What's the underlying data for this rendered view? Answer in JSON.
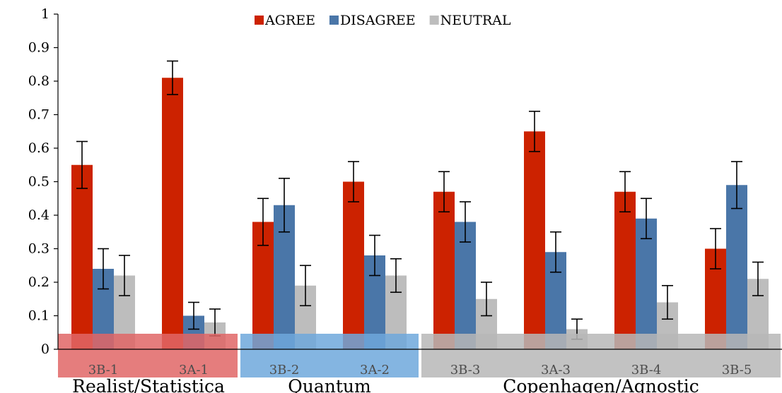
{
  "chart_data": {
    "type": "bar",
    "title": "",
    "xlabel": "",
    "ylabel": "",
    "ylim": [
      0,
      1
    ],
    "yticks": [
      "0",
      "0.1",
      "0.2",
      "0.3",
      "0.4",
      "0.5",
      "0.6",
      "0.7",
      "0.8",
      "0.9",
      "1"
    ],
    "categories": [
      "3B-1",
      "3A-1",
      "3B-2",
      "3A-2",
      "3B-3",
      "3A-3",
      "3B-4",
      "3B-5"
    ],
    "legend_position": "top-center",
    "series": [
      {
        "name": "AGREE",
        "color": "#cc2200",
        "values": [
          0.55,
          0.81,
          0.38,
          0.5,
          0.47,
          0.65,
          0.47,
          0.3
        ],
        "error_low": [
          0.48,
          0.76,
          0.31,
          0.44,
          0.41,
          0.59,
          0.41,
          0.24
        ],
        "error_high": [
          0.62,
          0.86,
          0.45,
          0.56,
          0.53,
          0.71,
          0.53,
          0.36
        ]
      },
      {
        "name": "DISAGREE",
        "color": "#4a76a8",
        "values": [
          0.24,
          0.1,
          0.43,
          0.28,
          0.38,
          0.29,
          0.39,
          0.49
        ],
        "error_low": [
          0.18,
          0.06,
          0.35,
          0.22,
          0.32,
          0.23,
          0.33,
          0.42
        ],
        "error_high": [
          0.3,
          0.14,
          0.51,
          0.34,
          0.44,
          0.35,
          0.45,
          0.56
        ]
      },
      {
        "name": "NEUTRAL",
        "color": "#bdbdbd",
        "values": [
          0.22,
          0.08,
          0.19,
          0.22,
          0.15,
          0.06,
          0.14,
          0.21
        ],
        "error_low": [
          0.16,
          0.04,
          0.13,
          0.17,
          0.1,
          0.03,
          0.09,
          0.16
        ],
        "error_high": [
          0.28,
          0.12,
          0.25,
          0.27,
          0.2,
          0.09,
          0.19,
          0.26
        ]
      }
    ],
    "groups": [
      {
        "label": "Realist/Statistica",
        "categories": [
          "3B-1",
          "3A-1"
        ],
        "color": "#e06666"
      },
      {
        "label": "Quantum",
        "categories": [
          "3B-2",
          "3A-2"
        ],
        "color": "#6fa8dc"
      },
      {
        "label": "Copenhagen/Agnostic",
        "categories": [
          "3B-3",
          "3A-3",
          "3B-4",
          "3B-5"
        ],
        "color": "#b7b7b7"
      }
    ]
  }
}
